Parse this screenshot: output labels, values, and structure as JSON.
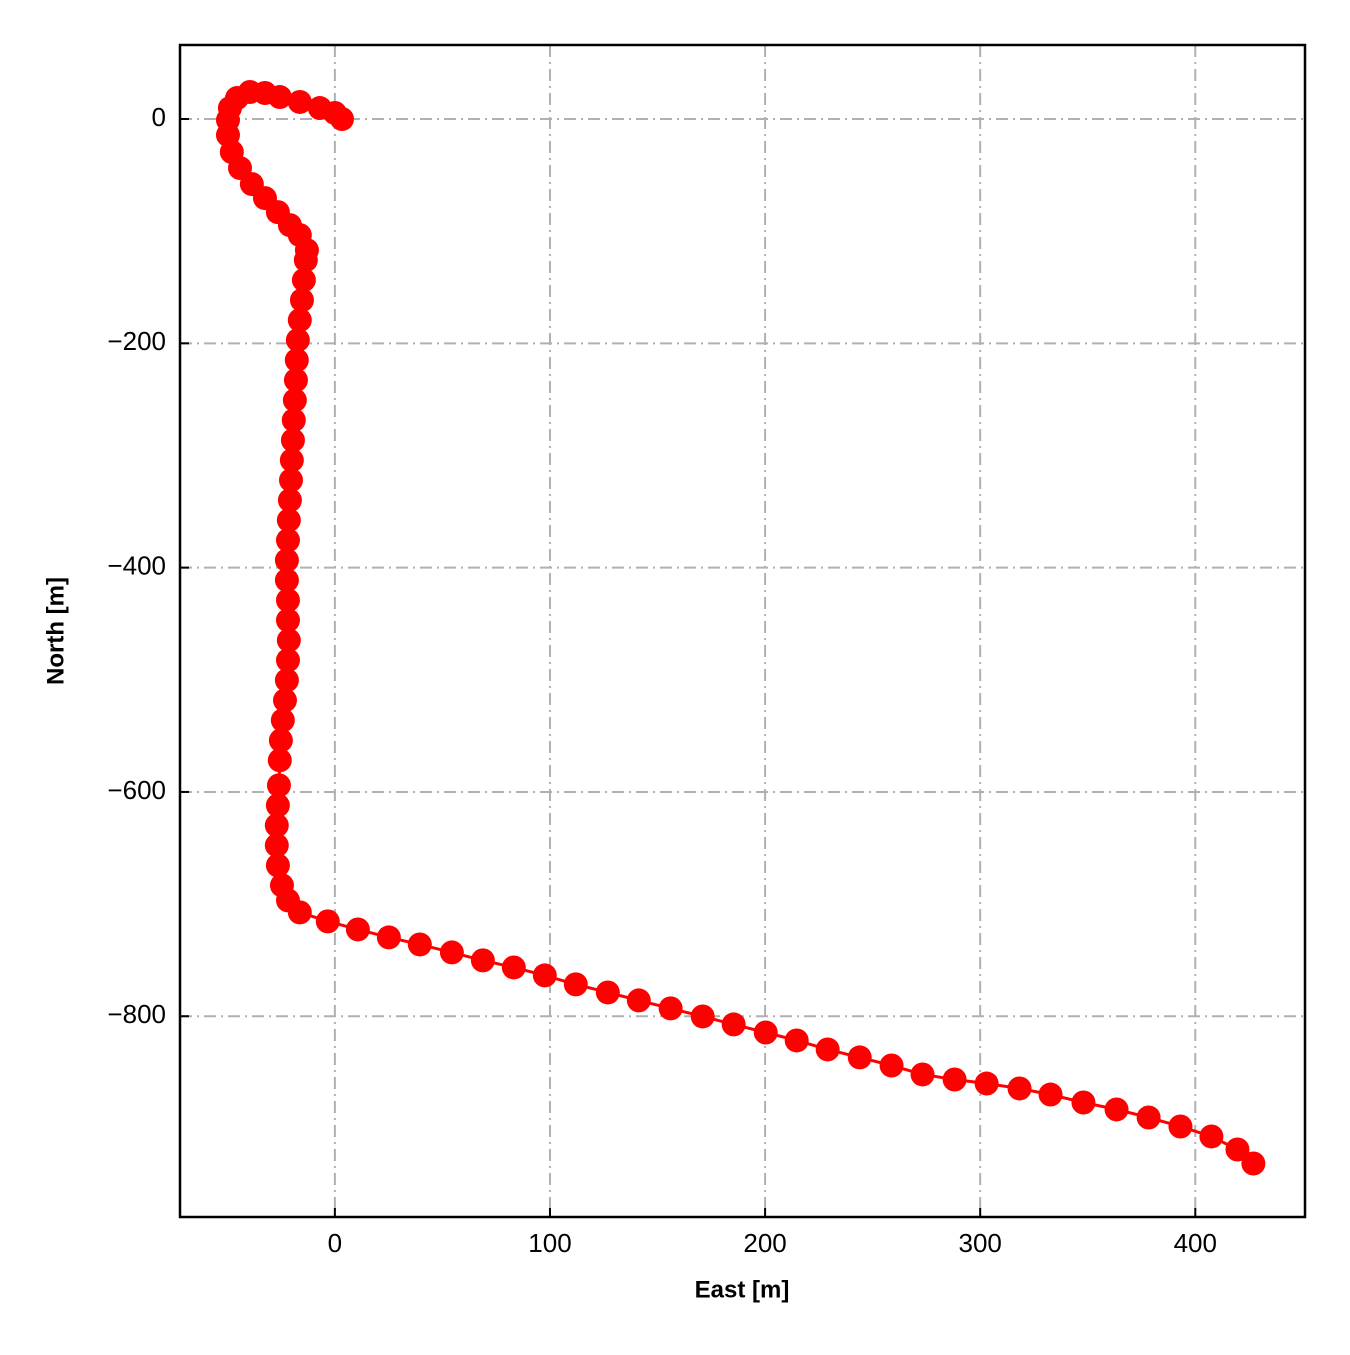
{
  "chart_data": {
    "type": "line",
    "markers": true,
    "xlabel": "East [m]",
    "ylabel": "North [m]",
    "xlim": [
      -72,
      451
    ],
    "ylim": [
      -979,
      66
    ],
    "xticks": [
      0,
      100,
      200,
      300,
      400
    ],
    "yticks": [
      0,
      {
        "value": -200,
        "label": "−200"
      },
      {
        "value": -400,
        "label": "−400"
      },
      {
        "value": -600,
        "label": "−600"
      },
      {
        "value": -800,
        "label": "−800"
      }
    ],
    "grid": true,
    "series": [
      {
        "color": "#ff0000",
        "x": [
          3.3,
          0,
          -7.0,
          -16.3,
          -25.6,
          -32.5,
          -39.5,
          -45.5,
          -48.8,
          -49.7,
          -49.7,
          -47.9,
          -44.1,
          -38.6,
          -32.5,
          -26.5,
          -20.9,
          -16.3,
          -13.0,
          -13.5,
          -14.4,
          -15.3,
          -16.3,
          -17.2,
          -17.7,
          -18.1,
          -18.6,
          -19.1,
          -19.5,
          -20.0,
          -20.4,
          -20.9,
          -21.4,
          -21.8,
          -22.3,
          -22.3,
          -21.8,
          -21.8,
          -21.4,
          -21.8,
          -22.3,
          -23.2,
          -24.2,
          -25.1,
          -25.6,
          -26.0,
          -26.5,
          -27.0,
          -27.0,
          -26.5,
          -24.6,
          -21.8,
          -16.3,
          -3.3,
          10.7,
          25.1,
          39.5,
          54.4,
          68.8,
          83.2,
          97.6,
          112.0,
          126.9,
          141.3,
          156.1,
          171.0,
          185.4,
          200.3,
          214.7,
          229.1,
          244.0,
          258.8,
          273.2,
          288.1,
          303.0,
          318.3,
          332.7,
          348.0,
          363.4,
          378.3,
          393.1,
          407.5,
          419.6,
          427.0
        ],
        "y": [
          0,
          5.4,
          9.8,
          15.2,
          19.6,
          23.2,
          24.1,
          18.7,
          9.8,
          -0.9,
          -14.3,
          -29.4,
          -43.7,
          -58.0,
          -70.5,
          -83.0,
          -94.6,
          -103.5,
          -116.9,
          -125.8,
          -143.6,
          -161.5,
          -179.3,
          -197.1,
          -215.0,
          -232.8,
          -250.7,
          -268.5,
          -286.4,
          -304.2,
          -322.0,
          -339.9,
          -357.7,
          -375.6,
          -393.4,
          -411.2,
          -429.1,
          -446.9,
          -464.8,
          -482.6,
          -500.4,
          -518.3,
          -536.1,
          -554.0,
          -571.8,
          -594.1,
          -612.0,
          -629.8,
          -647.6,
          -665.5,
          -683.3,
          -696.7,
          -707.4,
          -715.4,
          -722.6,
          -729.7,
          -736.0,
          -743.1,
          -750.2,
          -756.5,
          -763.6,
          -771.6,
          -778.8,
          -785.9,
          -793.0,
          -800.2,
          -807.3,
          -814.5,
          -821.6,
          -829.6,
          -836.7,
          -843.9,
          -851.9,
          -856.4,
          -860.0,
          -864.4,
          -869.8,
          -876.9,
          -883.1,
          -890.3,
          -898.3,
          -907.2,
          -918.8,
          -931.3
        ]
      }
    ]
  }
}
